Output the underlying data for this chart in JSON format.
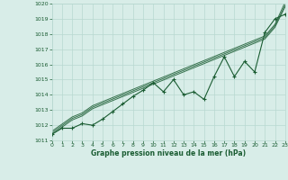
{
  "x": [
    0,
    1,
    2,
    3,
    4,
    5,
    6,
    7,
    8,
    9,
    10,
    11,
    12,
    13,
    14,
    15,
    16,
    17,
    18,
    19,
    20,
    21,
    22,
    23
  ],
  "pressure": [
    1011.4,
    1011.8,
    1011.8,
    1012.1,
    1012.0,
    1012.4,
    1012.9,
    1013.4,
    1013.9,
    1014.3,
    1014.8,
    1014.2,
    1015.0,
    1014.0,
    1014.2,
    1013.7,
    1015.2,
    1016.5,
    1015.2,
    1016.2,
    1015.5,
    1018.1,
    1019.0,
    1019.3
  ],
  "trend1": [
    1011.4,
    1011.87,
    1012.34,
    1012.61,
    1013.08,
    1013.35,
    1013.62,
    1013.89,
    1014.16,
    1014.43,
    1014.7,
    1014.97,
    1015.24,
    1015.51,
    1015.78,
    1016.05,
    1016.32,
    1016.59,
    1016.86,
    1017.13,
    1017.4,
    1017.67,
    1018.44,
    1019.8
  ],
  "trend2": [
    1011.5,
    1011.97,
    1012.44,
    1012.71,
    1013.18,
    1013.45,
    1013.72,
    1013.99,
    1014.26,
    1014.53,
    1014.8,
    1015.07,
    1015.34,
    1015.61,
    1015.88,
    1016.15,
    1016.42,
    1016.69,
    1016.96,
    1017.23,
    1017.5,
    1017.77,
    1018.54,
    1019.9
  ],
  "trend3": [
    1011.6,
    1012.07,
    1012.54,
    1012.81,
    1013.28,
    1013.55,
    1013.82,
    1014.09,
    1014.36,
    1014.63,
    1014.9,
    1015.17,
    1015.44,
    1015.71,
    1015.98,
    1016.25,
    1016.52,
    1016.79,
    1017.06,
    1017.33,
    1017.6,
    1017.87,
    1018.64,
    1020.1
  ],
  "bg_color": "#d8ede8",
  "grid_color": "#b8d8d0",
  "line_color": "#1a5c32",
  "ylim": [
    1011,
    1020
  ],
  "xlim": [
    0,
    23
  ],
  "yticks": [
    1011,
    1012,
    1013,
    1014,
    1015,
    1016,
    1017,
    1018,
    1019,
    1020
  ],
  "xticks": [
    0,
    1,
    2,
    3,
    4,
    5,
    6,
    7,
    8,
    9,
    10,
    11,
    12,
    13,
    14,
    15,
    16,
    17,
    18,
    19,
    20,
    21,
    22,
    23
  ],
  "xlabel": "Graphe pression niveau de la mer (hPa)"
}
